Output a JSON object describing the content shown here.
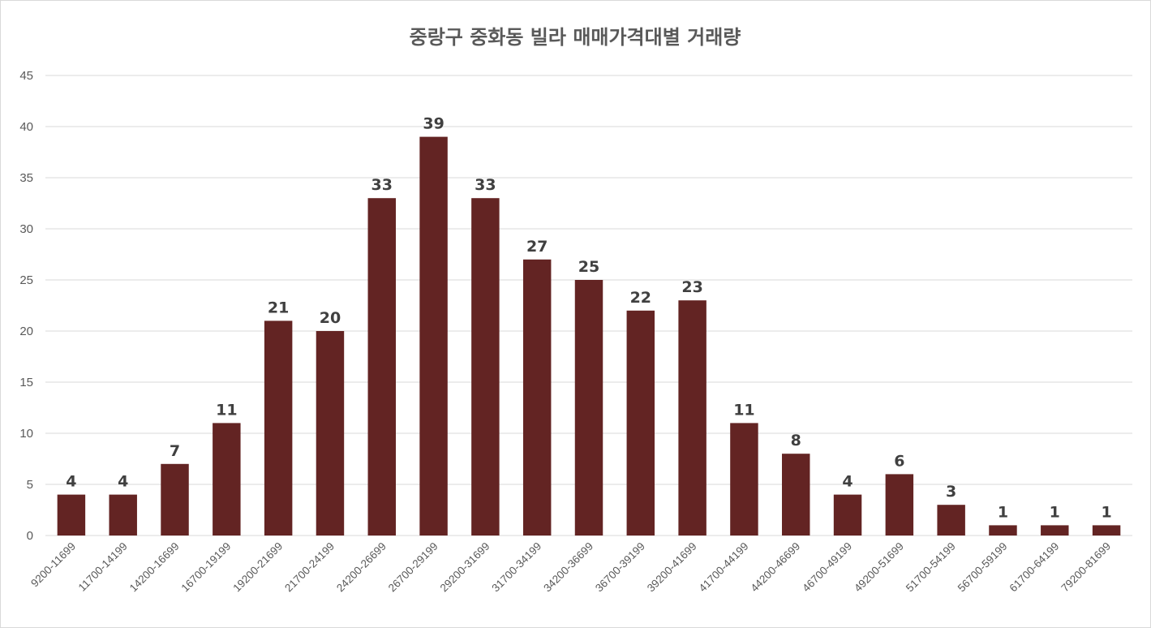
{
  "chart_data": {
    "type": "bar",
    "title": "중랑구 중화동 빌라 매매가격대별 거래량",
    "xlabel": "",
    "ylabel": "",
    "ylim": [
      0,
      45
    ],
    "yticks": [
      "0",
      "5",
      "10",
      "15",
      "20",
      "25",
      "30",
      "35",
      "40",
      "45"
    ],
    "grid": true,
    "legend": "none",
    "bar_color": "#632423",
    "categories": [
      "9200-11699",
      "11700-14199",
      "14200-16699",
      "16700-19199",
      "19200-21699",
      "21700-24199",
      "24200-26699",
      "26700-29199",
      "29200-31699",
      "31700-34199",
      "34200-36699",
      "36700-39199",
      "39200-41699",
      "41700-44199",
      "44200-46699",
      "46700-49199",
      "49200-51699",
      "51700-54199",
      "56700-59199",
      "61700-64199",
      "79200-81699"
    ],
    "values": [
      4,
      4,
      7,
      11,
      21,
      20,
      33,
      39,
      33,
      27,
      25,
      22,
      23,
      11,
      8,
      4,
      6,
      3,
      1,
      1,
      1
    ],
    "data_labels": [
      "4",
      "4",
      "7",
      "11",
      "21",
      "20",
      "33",
      "39",
      "33",
      "27",
      "25",
      "22",
      "23",
      "11",
      "8",
      "4",
      "6",
      "3",
      "1",
      "1",
      "1"
    ]
  }
}
